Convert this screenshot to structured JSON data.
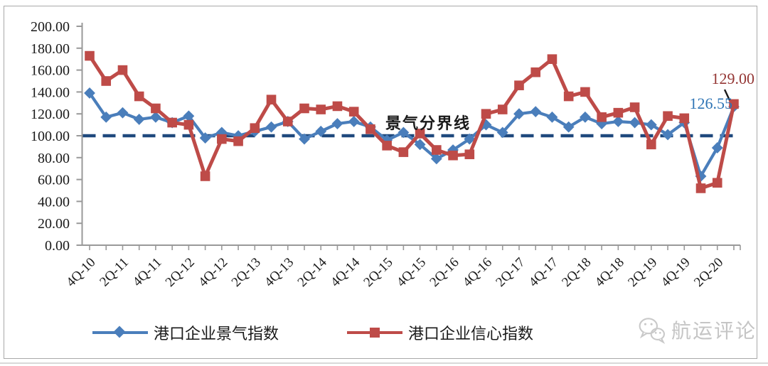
{
  "chart_data": {
    "type": "line",
    "title": "",
    "x": [
      "4Q-10",
      "1Q-11",
      "2Q-11",
      "3Q-11",
      "4Q-11",
      "1Q-12",
      "2Q-12",
      "3Q-12",
      "4Q-12",
      "1Q-13",
      "2Q-13",
      "3Q-13",
      "4Q-13",
      "1Q-14",
      "2Q-14",
      "3Q-14",
      "4Q-14",
      "1Q-15",
      "2Q-15",
      "3Q-15",
      "4Q-15",
      "1Q-16",
      "2Q-16",
      "3Q-16",
      "4Q-16",
      "1Q-17",
      "2Q-17",
      "3Q-17",
      "4Q-17",
      "1Q-18",
      "2Q-18",
      "3Q-18",
      "4Q-18",
      "1Q-19",
      "2Q-19",
      "3Q-19",
      "4Q-19",
      "1Q-20",
      "2Q-20",
      "3Q-20"
    ],
    "x_axis_visible_labels": [
      "4Q-10",
      "2Q-11",
      "4Q-11",
      "2Q-12",
      "4Q-12",
      "2Q-13",
      "4Q-13",
      "2Q-14",
      "4Q-14",
      "2Q-15",
      "4Q-15",
      "2Q-16",
      "4Q-16",
      "2Q-17",
      "4Q-17",
      "2Q-18",
      "4Q-18",
      "2Q-19",
      "4Q-19",
      "2Q-20"
    ],
    "series": [
      {
        "name": "港口企业景气指数",
        "color": "#4A7EBB",
        "marker": "diamond",
        "values": [
          139,
          117,
          121,
          115,
          117,
          112,
          118,
          98,
          103,
          100,
          104,
          108,
          113,
          97,
          104,
          111,
          113,
          108,
          96,
          103,
          92,
          79,
          87,
          97,
          110,
          103,
          120,
          122,
          117,
          108,
          117,
          111,
          113,
          112,
          110,
          101,
          112,
          63,
          89,
          126.55
        ]
      },
      {
        "name": "港口企业信心指数",
        "color": "#BE4B48",
        "marker": "square",
        "values": [
          173,
          150,
          160,
          136,
          125,
          112,
          110,
          63,
          97,
          95,
          107,
          133,
          113,
          125,
          124,
          127,
          122,
          106,
          91,
          85,
          102,
          87,
          82,
          83,
          120,
          124,
          146,
          158,
          170,
          136,
          140,
          117,
          121,
          126,
          92,
          118,
          116,
          52,
          57,
          129
        ]
      }
    ],
    "ylim": [
      0,
      200
    ],
    "y_tick_step": 20,
    "y_tick_labels": [
      "0.00",
      "20.00",
      "40.00",
      "60.00",
      "80.00",
      "100.00",
      "120.00",
      "140.00",
      "160.00",
      "180.00",
      "200.00"
    ],
    "grid": "off",
    "legend_position": "bottom",
    "reference_line": {
      "value": 100,
      "label": "景气分界线",
      "color": "#1F497D",
      "style": "dashed"
    },
    "annotations": [
      {
        "text": "129.00",
        "value": 129.0,
        "series": "港口企业信心指数",
        "point": "3Q-20",
        "color": "#943634"
      },
      {
        "text": "126.55",
        "value": 126.55,
        "series": "港口企业景气指数",
        "point": "3Q-20",
        "color": "#2E74B5"
      }
    ],
    "axis_color": "#999999",
    "tick_label_color": "#1a1a1a"
  },
  "legend": {
    "items": [
      {
        "label": "港口企业景气指数"
      },
      {
        "label": "港口企业信心指数"
      }
    ]
  },
  "watermark": {
    "icon": "wechat-icon",
    "text": "航运评论",
    "color": "#c5c5c5"
  }
}
